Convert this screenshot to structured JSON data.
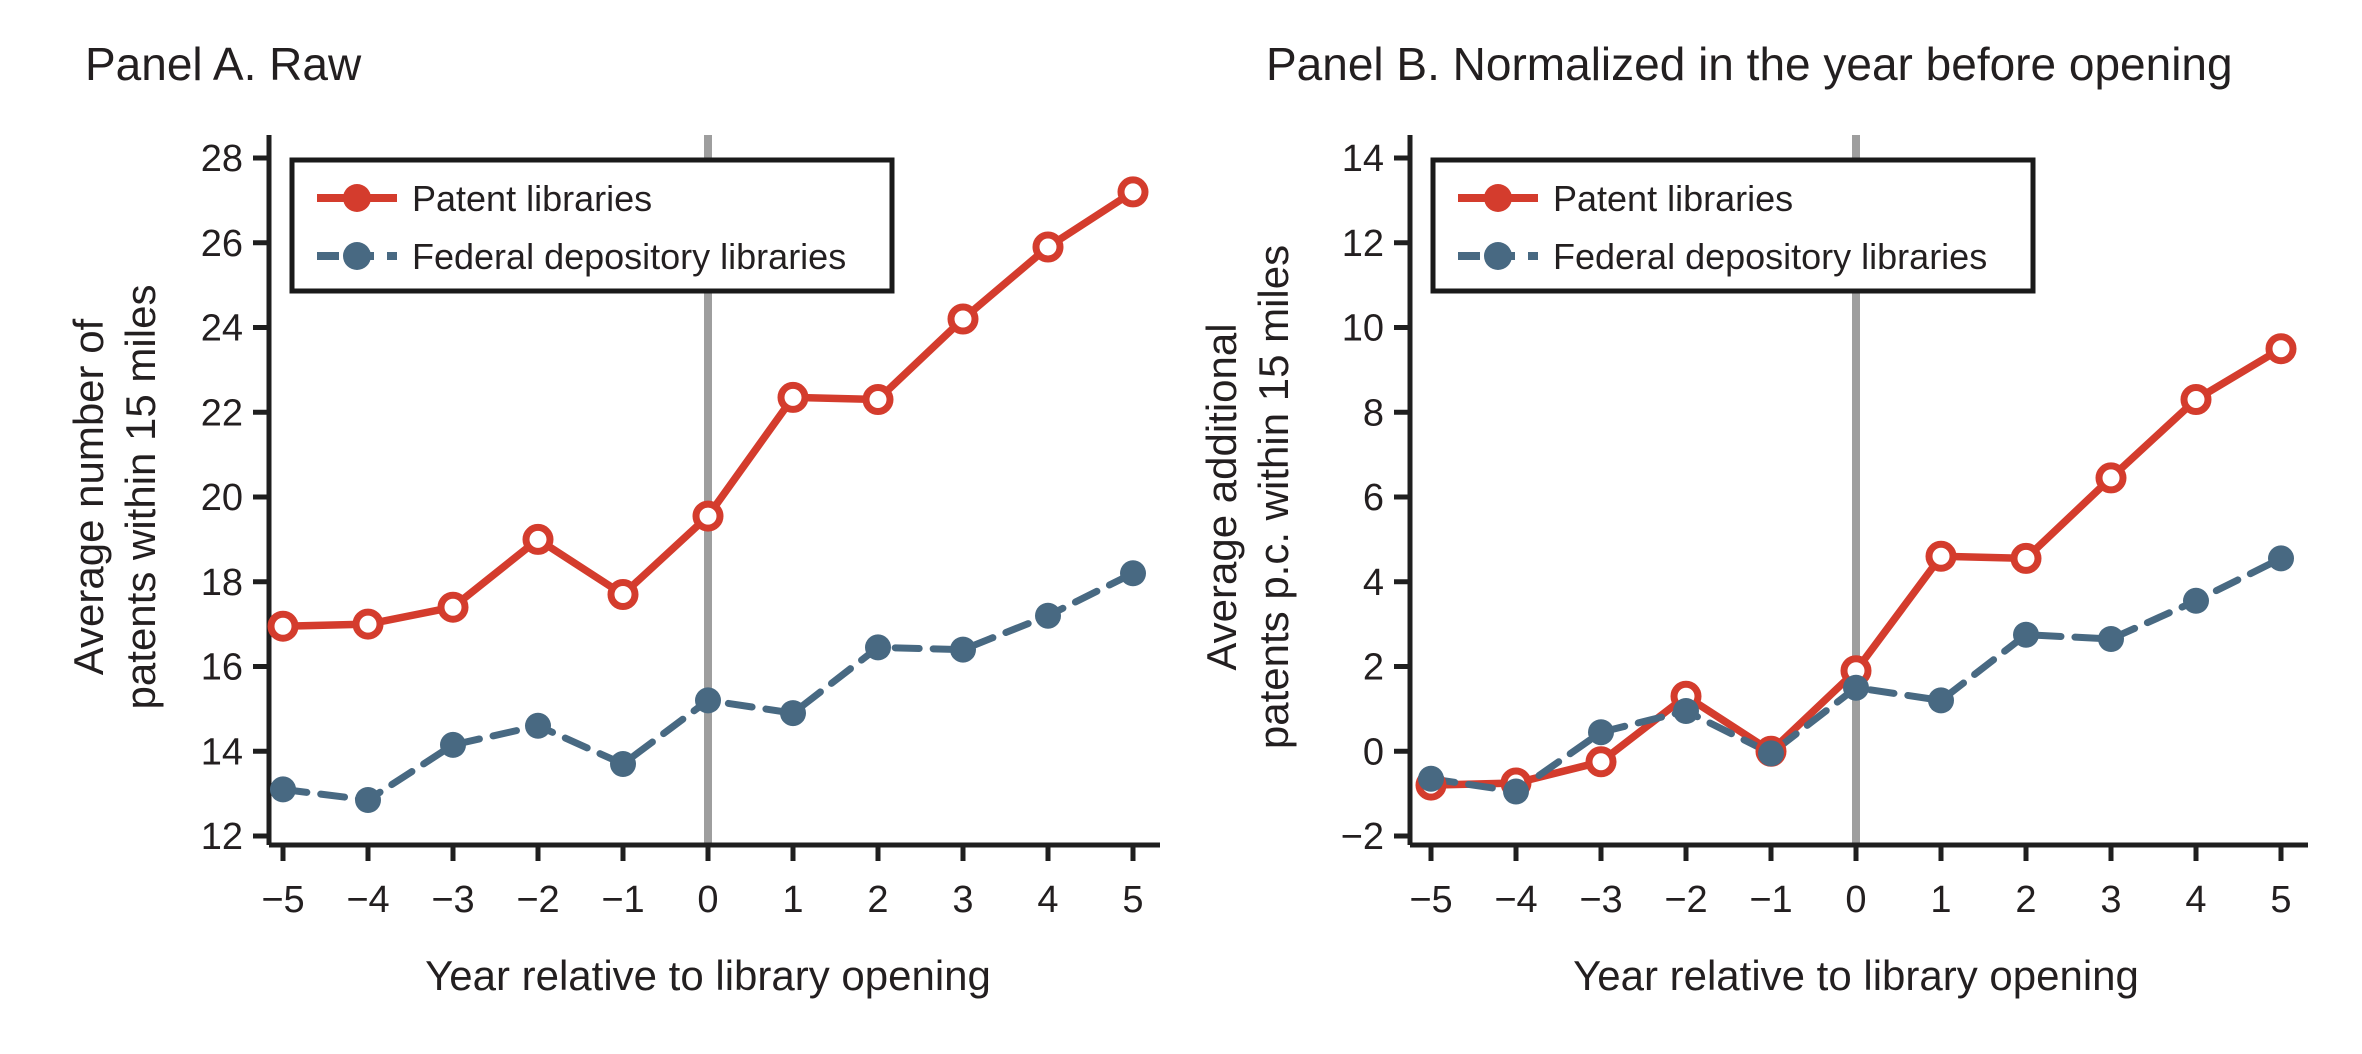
{
  "legend": {
    "entries": [
      {
        "label": "Patent libraries"
      },
      {
        "label": "Federal depository libraries"
      }
    ]
  },
  "colors": {
    "patent": "#d43c2d",
    "federal": "#486982",
    "reference_line": "#9e9e9e",
    "axis": "#1f1f1f",
    "text": "#231f20",
    "background": "#ffffff",
    "legend_border": "#1a1a1a"
  },
  "chart_data": [
    {
      "type": "line",
      "panel": "A",
      "title": "Panel A. Raw",
      "xlabel": "Year relative to library opening",
      "ylabel": "Average number of patents within 15 miles",
      "ylabel_line1": "Average number of",
      "ylabel_line2": "patents within 15 miles",
      "x": [
        -5,
        -4,
        -3,
        -2,
        -1,
        0,
        1,
        2,
        3,
        4,
        5
      ],
      "xtick_labels": [
        "−5",
        "−4",
        "−3",
        "−2",
        "−1",
        "0",
        "1",
        "2",
        "3",
        "4",
        "5"
      ],
      "ylim": [
        12,
        28
      ],
      "yticks": [
        28,
        26,
        24,
        22,
        20,
        18,
        16,
        14,
        12
      ],
      "ytick_labels": [
        "28",
        "26",
        "24",
        "22",
        "20",
        "18",
        "16",
        "14",
        "12"
      ],
      "reference_line_x": 0,
      "grid": false,
      "legend_position": "top-left",
      "series": [
        {
          "name": "Patent libraries",
          "values": [
            16.95,
            17.0,
            17.4,
            19.0,
            17.7,
            19.55,
            22.35,
            22.3,
            24.2,
            25.9,
            27.2
          ],
          "color": "#d43c2d",
          "line_style": "solid",
          "marker": "hollow-circle"
        },
        {
          "name": "Federal depository libraries",
          "values": [
            13.1,
            12.85,
            14.15,
            14.6,
            13.7,
            15.2,
            14.9,
            16.45,
            16.4,
            17.2,
            18.2
          ],
          "color": "#486982",
          "line_style": "dashed",
          "marker": "filled-circle"
        }
      ]
    },
    {
      "type": "line",
      "panel": "B",
      "title": "Panel B. Normalized in the year before opening",
      "xlabel": "Year relative to library opening",
      "ylabel": "Average additional patents p.c. within 15 miles",
      "ylabel_line1": "Average additional",
      "ylabel_line2": "patents p.c. within 15 miles",
      "x": [
        -5,
        -4,
        -3,
        -2,
        -1,
        0,
        1,
        2,
        3,
        4,
        5
      ],
      "xtick_labels": [
        "−5",
        "−4",
        "−3",
        "−2",
        "−1",
        "0",
        "1",
        "2",
        "3",
        "4",
        "5"
      ],
      "ylim": [
        -2,
        14
      ],
      "yticks": [
        14,
        12,
        10,
        8,
        6,
        4,
        2,
        0,
        -2
      ],
      "ytick_labels": [
        "14",
        "12",
        "10",
        "8",
        "6",
        "4",
        "2",
        "0",
        "−2"
      ],
      "reference_line_x": 0,
      "grid": false,
      "legend_position": "top-left",
      "series": [
        {
          "name": "Patent libraries",
          "values": [
            -0.8,
            -0.75,
            -0.25,
            1.3,
            0.0,
            1.9,
            4.6,
            4.55,
            6.45,
            8.3,
            9.5
          ],
          "color": "#d43c2d",
          "line_style": "solid",
          "marker": "hollow-circle"
        },
        {
          "name": "Federal depository libraries",
          "values": [
            -0.65,
            -0.95,
            0.45,
            0.95,
            -0.05,
            1.5,
            1.2,
            2.75,
            2.65,
            3.55,
            4.55
          ],
          "color": "#486982",
          "line_style": "dashed",
          "marker": "filled-circle"
        }
      ]
    }
  ]
}
